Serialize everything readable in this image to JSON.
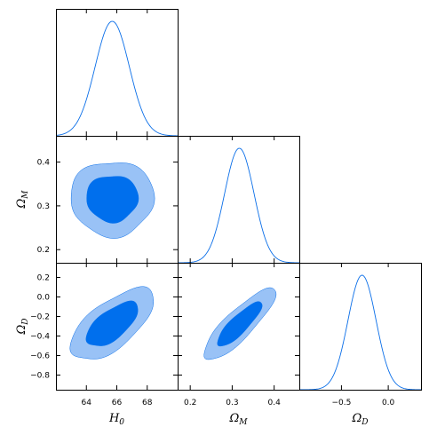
{
  "chart_data": {
    "type": "corner",
    "parameters": [
      {
        "id": "H0",
        "label": "H",
        "sub": "0",
        "range": [
          62.0,
          70.0
        ],
        "ticks": [
          64,
          66,
          68
        ],
        "tick_labels": [
          "64",
          "66",
          "68"
        ],
        "mean": 65.7,
        "sigma": 1.12
      },
      {
        "id": "OmegaM",
        "label": "Ω",
        "sub": "M",
        "range": [
          0.17,
          0.46
        ],
        "ticks": [
          0.2,
          0.3,
          0.4
        ],
        "tick_labels": [
          "0.2",
          "0.3",
          "0.4"
        ],
        "mean": 0.317,
        "sigma": 0.035
      },
      {
        "id": "OmegaD",
        "label": "Ω",
        "sub": "D",
        "range": [
          -0.95,
          0.35
        ],
        "ticks": [
          -0.8,
          -0.6,
          -0.4,
          -0.2,
          0.0,
          0.2
        ],
        "tick_labels": [
          "−0.8",
          "−0.6",
          "−0.4",
          "−0.2",
          "0.0",
          "0.2"
        ],
        "ticks_diag": [
          -0.5,
          0.0
        ],
        "tick_labels_diag": [
          "−0.5",
          "0.0"
        ],
        "mean": -0.28,
        "sigma": 0.15
      }
    ],
    "pairs": [
      {
        "x": "H0",
        "y": "OmegaM",
        "correlation": 0.0
      },
      {
        "x": "H0",
        "y": "OmegaD",
        "correlation": 0.65
      },
      {
        "x": "OmegaM",
        "y": "OmegaD",
        "correlation": 0.85
      }
    ],
    "contour_levels": [
      "68%",
      "95%"
    ],
    "colors": {
      "line": "#0a6ee8",
      "inner": "#006fed",
      "outer": "#99c2f6",
      "axis": "#000000"
    }
  }
}
